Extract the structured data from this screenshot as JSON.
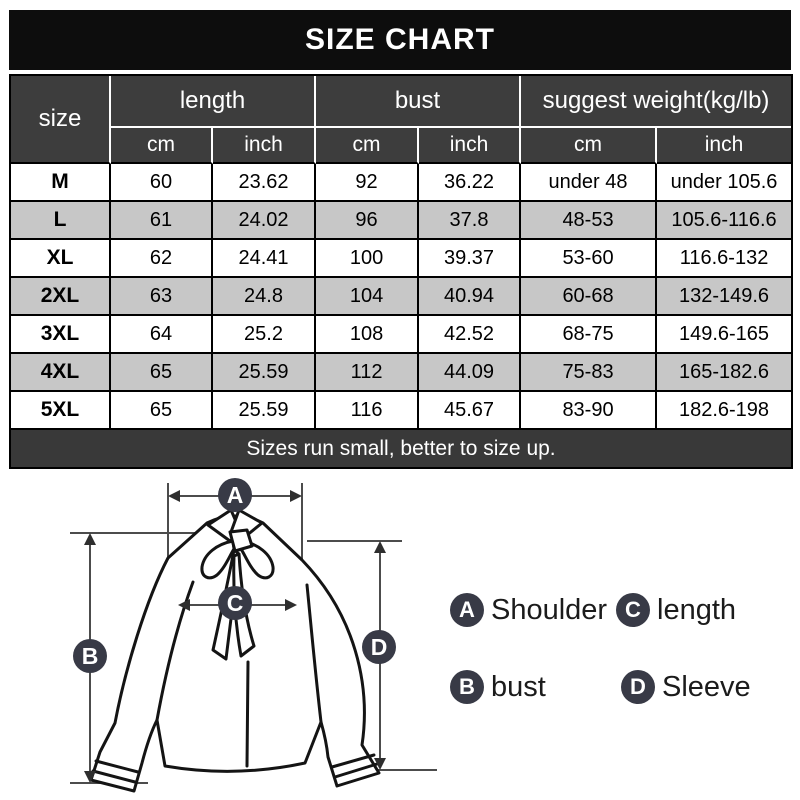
{
  "title": "SIZE CHART",
  "chart_data": {
    "type": "table",
    "title": "SIZE CHART",
    "column_groups": [
      {
        "label": "size",
        "colspan": 1
      },
      {
        "label": "length",
        "colspan": 2
      },
      {
        "label": "bust",
        "colspan": 2
      },
      {
        "label": "suggest weight(kg/lb)",
        "colspan": 2
      }
    ],
    "sub_headers": [
      "cm",
      "inch",
      "cm",
      "inch",
      "cm",
      "inch"
    ],
    "rows": [
      [
        "M",
        "60",
        "23.62",
        "92",
        "36.22",
        "under 48",
        "under 105.6"
      ],
      [
        "L",
        "61",
        "24.02",
        "96",
        "37.8",
        "48-53",
        "105.6-116.6"
      ],
      [
        "XL",
        "62",
        "24.41",
        "100",
        "39.37",
        "53-60",
        "116.6-132"
      ],
      [
        "2XL",
        "63",
        "24.8",
        "104",
        "40.94",
        "60-68",
        "132-149.6"
      ],
      [
        "3XL",
        "64",
        "25.2",
        "108",
        "42.52",
        "68-75",
        "149.6-165"
      ],
      [
        "4XL",
        "65",
        "25.59",
        "112",
        "44.09",
        "75-83",
        "165-182.6"
      ],
      [
        "5XL",
        "65",
        "25.59",
        "116",
        "45.67",
        "83-90",
        "182.6-198"
      ]
    ],
    "note": "Sizes run small, better to size up."
  },
  "diagram": {
    "markers": {
      "a": "A",
      "b": "B",
      "c": "C",
      "d": "D"
    },
    "legend": [
      {
        "marker": "A",
        "label": "Shoulder"
      },
      {
        "marker": "C",
        "label": "length"
      },
      {
        "marker": "B",
        "label": "bust"
      },
      {
        "marker": "D",
        "label": "Sleeve"
      }
    ]
  },
  "colors": {
    "title_bg": "#0d0d0d",
    "title_text": "#ffffff",
    "header_bg": "#3d3d3d",
    "header_text": "#ffffff",
    "row_bg": "#ffffff",
    "row_alt_bg": "#c7c7c7",
    "grid_border": "#000000",
    "header_divider": "#ffffff",
    "note_bg": "#393939",
    "note_text": "#ffffff",
    "marker_bg": "#383a46",
    "marker_text": "#ffffff"
  }
}
